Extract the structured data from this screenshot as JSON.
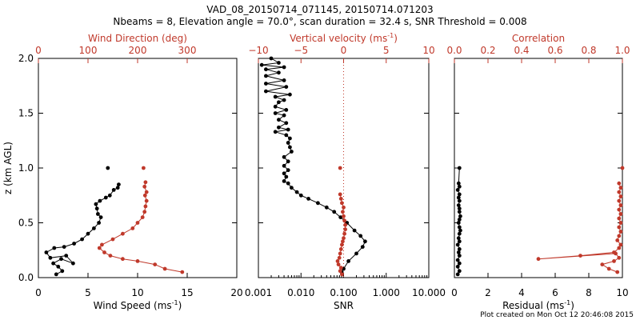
{
  "title": "VAD_08_20150714_071145, 20150714.071203",
  "subtitle": "Nbeams = 8, Elevation angle = 70.0°, scan duration = 32.4 s, SNR Threshold = 0.008",
  "footer": "Plot created on Mon Oct 12 20:46:08 2015",
  "colors": {
    "black": "#000000",
    "red": "#c0392b",
    "dotted": "#c0392b"
  },
  "chart_data": [
    {
      "type": "line",
      "panel": "wind",
      "ylabel": "z (km AGL)",
      "ylim": [
        0,
        2.0
      ],
      "y_ticks": [
        "0.0",
        "0.5",
        "1.0",
        "1.5",
        "2.0"
      ],
      "xlabel": "Wind Speed (ms",
      "xlabel_sup": "-1",
      "xlabel_tail": ")",
      "xlim": [
        0,
        20
      ],
      "x_ticks": [
        "0",
        "5",
        "10",
        "15",
        "20"
      ],
      "top_label": "Wind Direction (deg)",
      "top_lim": [
        0,
        400
      ],
      "top_ticks": [
        "0",
        "100",
        "200",
        "300"
      ],
      "series": [
        {
          "color": "black",
          "axis": "bottom",
          "x": [
            1.8,
            2.4,
            2.0,
            1.5,
            2.3,
            3.5,
            2.8,
            1.2,
            0.8,
            1.6,
            2.6,
            3.6,
            4.4,
            5.0,
            5.6,
            6.1,
            6.3,
            6.0,
            5.9,
            5.8,
            6.2,
            6.8,
            7.2,
            7.6,
            8.0,
            8.1
          ],
          "y": [
            0.03,
            0.06,
            0.1,
            0.13,
            0.17,
            0.13,
            0.2,
            0.18,
            0.23,
            0.27,
            0.28,
            0.31,
            0.35,
            0.4,
            0.45,
            0.5,
            0.55,
            0.58,
            0.63,
            0.67,
            0.7,
            0.73,
            0.75,
            0.8,
            0.82,
            0.85
          ]
        },
        {
          "color": "black",
          "axis": "bottom",
          "x": [
            7.0
          ],
          "y": [
            1.0
          ]
        },
        {
          "color": "red",
          "axis": "top",
          "x": [
            290,
            255,
            235,
            200,
            170,
            145,
            133,
            123,
            128,
            150,
            170,
            190,
            200,
            210,
            214,
            216,
            218,
            215,
            218,
            214,
            216
          ],
          "y": [
            0.05,
            0.08,
            0.12,
            0.15,
            0.17,
            0.2,
            0.23,
            0.27,
            0.3,
            0.35,
            0.4,
            0.45,
            0.5,
            0.55,
            0.6,
            0.65,
            0.7,
            0.75,
            0.78,
            0.83,
            0.87
          ]
        },
        {
          "color": "red",
          "axis": "top",
          "x": [
            212
          ],
          "y": [
            1.0
          ]
        }
      ]
    },
    {
      "type": "line",
      "panel": "snr",
      "xscale": "log",
      "xlabel": "SNR",
      "xlim": [
        0.001,
        10.0
      ],
      "x_ticks": [
        "0.001",
        "0.010",
        "0.100",
        "1.000",
        "10.000"
      ],
      "top_label": "Vertical velocity (ms",
      "top_label_sup": "-1",
      "top_label_tail": ")",
      "top_lim": [
        -10,
        10
      ],
      "top_ticks": [
        "−10",
        "−5",
        "0",
        "5",
        "10"
      ],
      "reference_line": {
        "axis": "top",
        "value": 0
      },
      "series": [
        {
          "color": "black",
          "axis": "bottom",
          "x": [
            0.09,
            0.1,
            0.13,
            0.2,
            0.28,
            0.32,
            0.25,
            0.18,
            0.12,
            0.085,
            0.06,
            0.04,
            0.025,
            0.015,
            0.01,
            0.008,
            0.006,
            0.005,
            0.004,
            0.0045,
            0.004,
            0.005,
            0.004,
            0.005,
            0.004,
            0.006,
            0.0055,
            0.005,
            0.0055,
            0.0045,
            0.0025,
            0.005,
            0.003,
            0.0045,
            0.003,
            0.004,
            0.0025,
            0.0045,
            0.0025,
            0.003,
            0.004,
            0.0025,
            0.0055,
            0.0015,
            0.0045,
            0.0015,
            0.004,
            0.0015,
            0.003,
            0.0015,
            0.004,
            0.0012,
            0.003,
            0.002
          ],
          "y": [
            0.05,
            0.08,
            0.15,
            0.22,
            0.28,
            0.33,
            0.38,
            0.43,
            0.5,
            0.55,
            0.6,
            0.64,
            0.68,
            0.72,
            0.75,
            0.78,
            0.82,
            0.86,
            0.88,
            0.92,
            0.95,
            0.98,
            1.02,
            1.06,
            1.1,
            1.15,
            1.19,
            1.23,
            1.27,
            1.3,
            1.33,
            1.35,
            1.37,
            1.41,
            1.44,
            1.48,
            1.5,
            1.53,
            1.56,
            1.6,
            1.62,
            1.65,
            1.67,
            1.7,
            1.74,
            1.77,
            1.8,
            1.84,
            1.87,
            1.9,
            1.92,
            1.94,
            1.96,
            2.0
          ]
        },
        {
          "color": "red",
          "axis": "top",
          "x": [
            -0.2,
            -0.4,
            -0.3,
            -0.6,
            -0.7,
            -0.5,
            -0.4,
            -0.3,
            -0.2,
            -0.1,
            0.0,
            0.1,
            0.2,
            0.2,
            0.1,
            0.0,
            -0.1,
            0.0,
            -0.2,
            -0.3,
            -0.4
          ],
          "y": [
            0.03,
            0.06,
            0.09,
            0.12,
            0.15,
            0.18,
            0.22,
            0.26,
            0.3,
            0.33,
            0.36,
            0.4,
            0.44,
            0.48,
            0.52,
            0.56,
            0.6,
            0.64,
            0.68,
            0.72,
            0.76
          ]
        },
        {
          "color": "red",
          "axis": "top",
          "x": [
            -0.4
          ],
          "y": [
            1.0
          ]
        }
      ]
    },
    {
      "type": "line",
      "panel": "residual",
      "xlabel": "Residual (ms",
      "xlabel_sup": "-1",
      "xlabel_tail": ")",
      "xlim": [
        0,
        10
      ],
      "x_ticks": [
        "0",
        "2",
        "4",
        "6",
        "8",
        "10"
      ],
      "top_label": "Correlation",
      "top_lim": [
        0.0,
        1.0
      ],
      "top_ticks": [
        "0.0",
        "0.2",
        "0.4",
        "0.6",
        "0.8",
        "1.0"
      ],
      "series": [
        {
          "color": "black",
          "axis": "bottom",
          "x": [
            0.2,
            0.3,
            0.2,
            0.3,
            0.2,
            0.3,
            0.25,
            0.3,
            0.2,
            0.3,
            0.25,
            0.3,
            0.35,
            0.3,
            0.25,
            0.3,
            0.35,
            0.3,
            0.3,
            0.25,
            0.3,
            0.25,
            0.3,
            0.2,
            0.3,
            0.25,
            0.3
          ],
          "y": [
            0.03,
            0.06,
            0.1,
            0.13,
            0.16,
            0.2,
            0.23,
            0.26,
            0.3,
            0.33,
            0.36,
            0.4,
            0.43,
            0.46,
            0.5,
            0.53,
            0.56,
            0.6,
            0.63,
            0.66,
            0.7,
            0.73,
            0.76,
            0.8,
            0.83,
            0.86,
            1.0
          ]
        },
        {
          "color": "red",
          "axis": "top",
          "x": [
            0.97,
            0.92,
            0.88,
            0.95,
            0.98,
            0.96,
            0.5,
            0.75,
            0.95,
            0.98,
            0.99,
            0.97,
            0.98,
            0.99,
            0.98,
            0.99,
            0.98,
            0.99,
            0.98,
            0.99,
            0.98,
            0.99,
            0.98,
            0.99,
            0.98
          ],
          "y": [
            0.05,
            0.08,
            0.12,
            0.15,
            0.18,
            0.22,
            0.17,
            0.2,
            0.23,
            0.27,
            0.3,
            0.34,
            0.38,
            0.42,
            0.46,
            0.5,
            0.54,
            0.58,
            0.62,
            0.66,
            0.7,
            0.74,
            0.78,
            0.82,
            0.86
          ]
        },
        {
          "color": "red",
          "axis": "top",
          "x": [
            1.0
          ],
          "y": [
            1.0
          ]
        }
      ]
    }
  ]
}
